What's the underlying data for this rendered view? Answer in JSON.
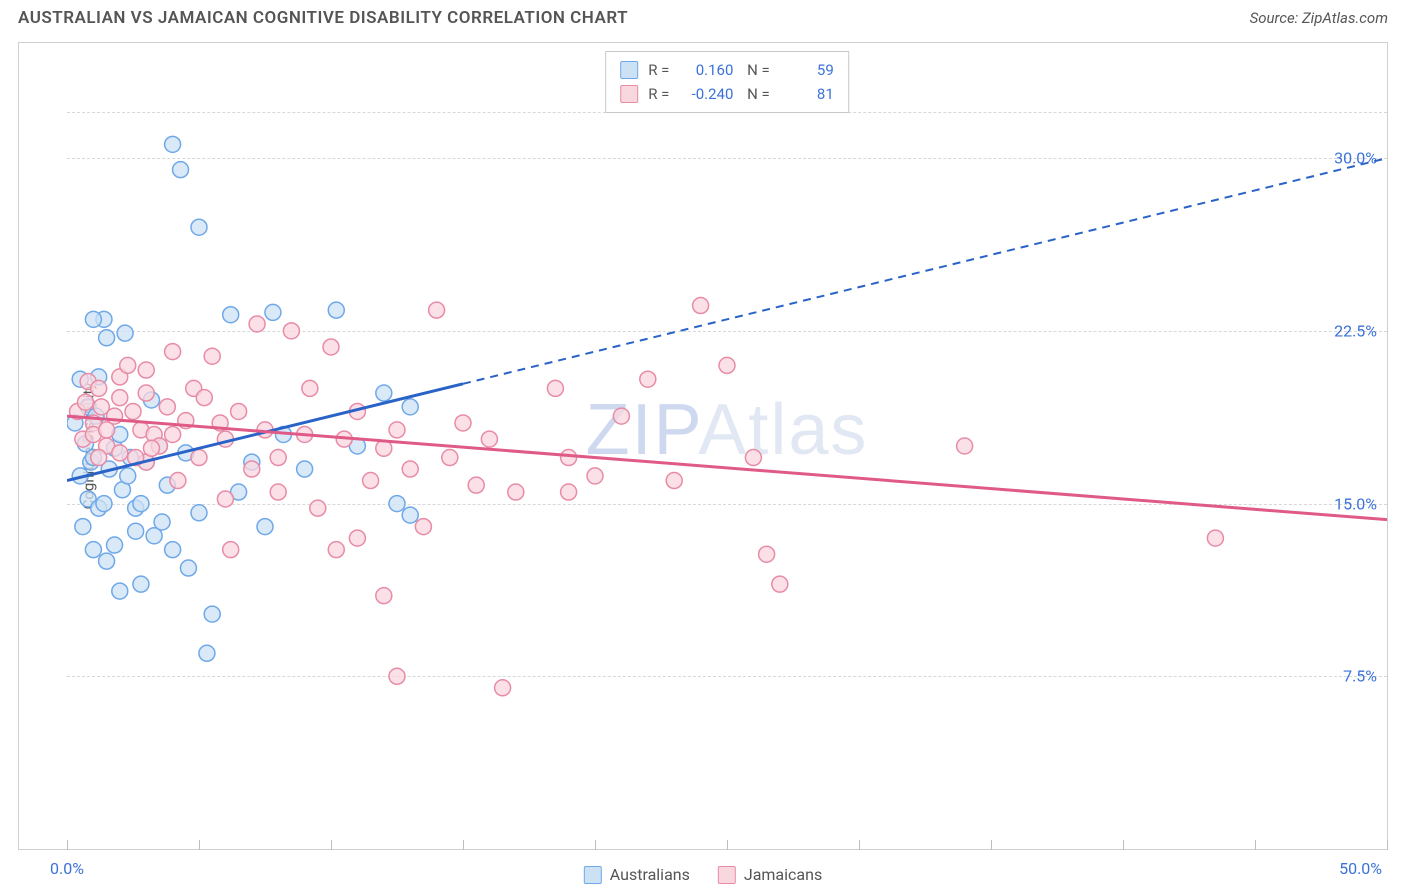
{
  "title": "AUSTRALIAN VS JAMAICAN COGNITIVE DISABILITY CORRELATION CHART",
  "source_label": "Source: ZipAtlas.com",
  "y_axis_label": "Cognitive Disability",
  "watermark": {
    "prefix": "ZIP",
    "suffix": "Atlas"
  },
  "chart": {
    "type": "scatter",
    "xlim": [
      0,
      50
    ],
    "ylim": [
      0,
      35
    ],
    "x_origin_label": "0.0%",
    "x_max_label": "50.0%",
    "x_ticks": [
      0,
      5,
      10,
      15,
      20,
      25,
      30,
      35,
      40,
      45,
      50
    ],
    "y_ticks": [
      {
        "value": 7.5,
        "label": "7.5%"
      },
      {
        "value": 15.0,
        "label": "15.0%"
      },
      {
        "value": 22.5,
        "label": "22.5%"
      },
      {
        "value": 30.0,
        "label": "30.0%"
      },
      {
        "value": 32.0,
        "label": ""
      }
    ],
    "grid_color": "#d8d8d8",
    "background_color": "#ffffff",
    "marker_radius": 8,
    "marker_stroke_width": 1.5,
    "series": [
      {
        "name": "Australians",
        "r": "0.160",
        "n": "59",
        "fill": "#cde1f5",
        "stroke": "#6fa8e8",
        "line_color": "#2a63c8",
        "line_width": 3,
        "trend": {
          "x1": 0,
          "y1": 16.0,
          "x2": 50,
          "y2": 30.0,
          "solid_until_x": 15
        },
        "points": [
          [
            0.3,
            18.5
          ],
          [
            0.5,
            16.2
          ],
          [
            0.6,
            14.0
          ],
          [
            0.7,
            17.6
          ],
          [
            0.8,
            19.2
          ],
          [
            0.8,
            15.2
          ],
          [
            0.9,
            16.8
          ],
          [
            1.0,
            13.0
          ],
          [
            1.0,
            17.0
          ],
          [
            1.1,
            18.8
          ],
          [
            1.2,
            20.5
          ],
          [
            1.2,
            14.8
          ],
          [
            1.4,
            23.0
          ],
          [
            1.4,
            15.0
          ],
          [
            1.5,
            22.2
          ],
          [
            1.5,
            12.5
          ],
          [
            1.6,
            16.5
          ],
          [
            1.8,
            17.4
          ],
          [
            1.8,
            13.2
          ],
          [
            2.0,
            18.0
          ],
          [
            2.0,
            11.2
          ],
          [
            2.1,
            15.6
          ],
          [
            2.3,
            16.2
          ],
          [
            2.4,
            17.0
          ],
          [
            2.6,
            13.8
          ],
          [
            2.6,
            14.8
          ],
          [
            2.8,
            15.0
          ],
          [
            2.8,
            11.5
          ],
          [
            3.0,
            16.8
          ],
          [
            3.2,
            19.5
          ],
          [
            3.3,
            13.6
          ],
          [
            3.5,
            17.5
          ],
          [
            3.6,
            14.2
          ],
          [
            3.8,
            15.8
          ],
          [
            4.0,
            13.0
          ],
          [
            4.0,
            30.6
          ],
          [
            4.3,
            29.5
          ],
          [
            4.5,
            17.2
          ],
          [
            4.6,
            12.2
          ],
          [
            5.0,
            14.6
          ],
          [
            5.0,
            27.0
          ],
          [
            5.5,
            10.2
          ],
          [
            5.3,
            8.5
          ],
          [
            6.2,
            23.2
          ],
          [
            6.5,
            15.5
          ],
          [
            7.0,
            16.8
          ],
          [
            7.5,
            14.0
          ],
          [
            7.8,
            23.3
          ],
          [
            8.2,
            18.0
          ],
          [
            9.0,
            16.5
          ],
          [
            10.2,
            23.4
          ],
          [
            11.0,
            17.5
          ],
          [
            12.0,
            19.8
          ],
          [
            12.5,
            15.0
          ],
          [
            13.0,
            14.5
          ],
          [
            13.0,
            19.2
          ],
          [
            1.0,
            23.0
          ],
          [
            2.2,
            22.4
          ],
          [
            0.5,
            20.4
          ]
        ]
      },
      {
        "name": "Jamaicans",
        "r": "-0.240",
        "n": "81",
        "fill": "#f9d7df",
        "stroke": "#e88ba6",
        "line_color": "#e05a88",
        "line_width": 3,
        "trend": {
          "x1": 0,
          "y1": 18.8,
          "x2": 50,
          "y2": 14.3,
          "solid_until_x": 50
        },
        "points": [
          [
            0.4,
            19.0
          ],
          [
            0.6,
            17.8
          ],
          [
            0.7,
            19.4
          ],
          [
            0.8,
            20.3
          ],
          [
            1.0,
            18.5
          ],
          [
            1.0,
            18.0
          ],
          [
            1.2,
            20.0
          ],
          [
            1.3,
            19.2
          ],
          [
            1.5,
            18.2
          ],
          [
            1.5,
            17.5
          ],
          [
            1.8,
            18.8
          ],
          [
            2.0,
            20.5
          ],
          [
            2.0,
            17.2
          ],
          [
            2.3,
            21.0
          ],
          [
            2.5,
            19.0
          ],
          [
            2.8,
            18.2
          ],
          [
            3.0,
            20.8
          ],
          [
            3.0,
            16.8
          ],
          [
            3.3,
            18.0
          ],
          [
            3.5,
            17.5
          ],
          [
            3.8,
            19.2
          ],
          [
            4.0,
            21.6
          ],
          [
            4.0,
            18.0
          ],
          [
            4.2,
            16.0
          ],
          [
            4.5,
            18.6
          ],
          [
            4.8,
            20.0
          ],
          [
            5.0,
            17.0
          ],
          [
            5.5,
            21.4
          ],
          [
            5.8,
            18.5
          ],
          [
            6.0,
            17.8
          ],
          [
            6.5,
            19.0
          ],
          [
            7.0,
            16.5
          ],
          [
            7.2,
            22.8
          ],
          [
            7.5,
            18.2
          ],
          [
            8.0,
            17.0
          ],
          [
            8.5,
            22.5
          ],
          [
            9.0,
            18.0
          ],
          [
            9.5,
            14.8
          ],
          [
            10.0,
            21.8
          ],
          [
            10.2,
            13.0
          ],
          [
            10.5,
            17.8
          ],
          [
            11.0,
            19.0
          ],
          [
            11.5,
            16.0
          ],
          [
            12.0,
            17.4
          ],
          [
            12.0,
            11.0
          ],
          [
            12.5,
            18.2
          ],
          [
            12.5,
            7.5
          ],
          [
            13.0,
            16.5
          ],
          [
            14.0,
            23.4
          ],
          [
            14.5,
            17.0
          ],
          [
            15.0,
            18.5
          ],
          [
            15.5,
            15.8
          ],
          [
            16.0,
            17.8
          ],
          [
            16.5,
            7.0
          ],
          [
            17.0,
            15.5
          ],
          [
            18.5,
            20.0
          ],
          [
            19.0,
            17.0
          ],
          [
            19.0,
            15.5
          ],
          [
            20.0,
            16.2
          ],
          [
            21.0,
            18.8
          ],
          [
            22.0,
            20.4
          ],
          [
            23.0,
            16.0
          ],
          [
            24.0,
            23.6
          ],
          [
            25.0,
            21.0
          ],
          [
            26.0,
            17.0
          ],
          [
            26.5,
            12.8
          ],
          [
            27.0,
            11.5
          ],
          [
            34.0,
            17.5
          ],
          [
            43.5,
            13.5
          ],
          [
            8.0,
            15.5
          ],
          [
            9.2,
            20.0
          ],
          [
            6.0,
            15.2
          ],
          [
            6.2,
            13.0
          ],
          [
            11.0,
            13.5
          ],
          [
            13.5,
            14.0
          ],
          [
            3.0,
            19.8
          ],
          [
            1.2,
            17.0
          ],
          [
            2.0,
            19.6
          ],
          [
            2.6,
            17.0
          ],
          [
            3.2,
            17.4
          ],
          [
            5.2,
            19.6
          ]
        ]
      }
    ]
  },
  "legend_bottom": [
    {
      "label": "Australians",
      "fill": "#cde1f5",
      "stroke": "#6fa8e8"
    },
    {
      "label": "Jamaicans",
      "fill": "#f9d7df",
      "stroke": "#e88ba6"
    }
  ]
}
